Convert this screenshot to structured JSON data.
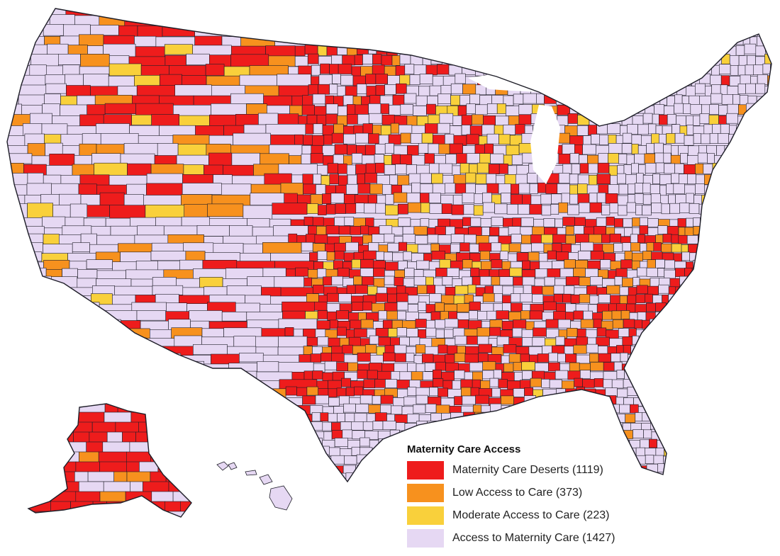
{
  "legend": {
    "title": "Maternity Care Access",
    "items": [
      {
        "label": "Maternity Care Deserts (1119)",
        "color": "#ee1c1c"
      },
      {
        "label": "Low Access to Care (373)",
        "color": "#f7911e"
      },
      {
        "label": "Moderate Access to Care (223)",
        "color": "#f9d03b"
      },
      {
        "label": "Access to Maternity Care (1427)",
        "color": "#e6d8f3"
      }
    ]
  },
  "colors": {
    "desert": "#ee1c1c",
    "low": "#f7911e",
    "moderate": "#f9d03b",
    "access": "#e6d8f3",
    "border": "#1e1e28"
  }
}
